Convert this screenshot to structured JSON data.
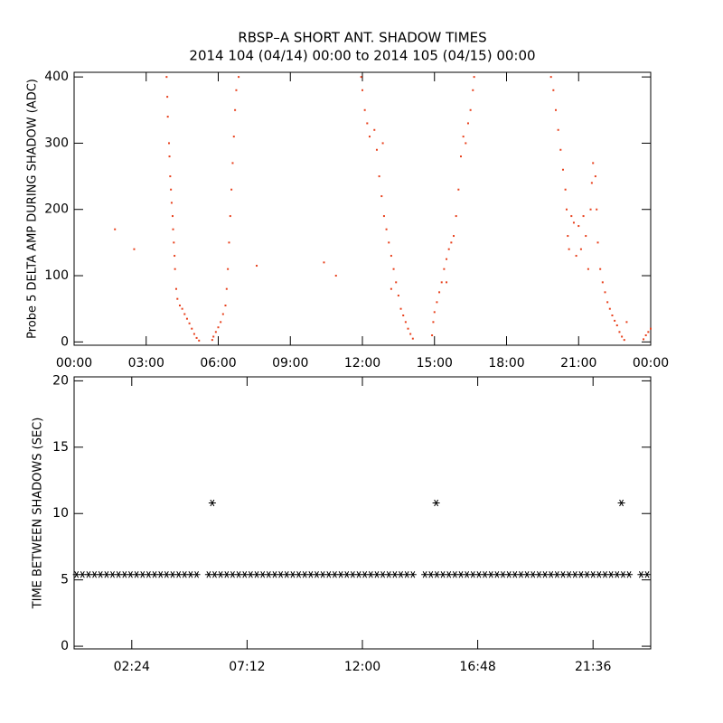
{
  "chart_data": [
    {
      "type": "scatter",
      "title": "RBSP–A SHORT ANT. SHADOW TIMES",
      "subtitle": "2014 104 (04/14) 00:00 to 2014 105 (04/15) 00:00",
      "y_label": "Probe 5 DELTA AMP DURING SHADOW (ADC)",
      "color": "#e8401c",
      "xlim": [
        0,
        24
      ],
      "ylim": [
        -5,
        407
      ],
      "xticks": [
        {
          "value": 0,
          "label": "00:00"
        },
        {
          "value": 3,
          "label": "03:00"
        },
        {
          "value": 6,
          "label": "06:00"
        },
        {
          "value": 9,
          "label": "09:00"
        },
        {
          "value": 12,
          "label": "12:00"
        },
        {
          "value": 15,
          "label": "15:00"
        },
        {
          "value": 18,
          "label": "18:00"
        },
        {
          "value": 21,
          "label": "21:00"
        },
        {
          "value": 24,
          "label": "00:00"
        }
      ],
      "yticks": [
        0,
        100,
        200,
        300,
        400
      ],
      "x": [
        3.85,
        3.88,
        3.9,
        3.95,
        3.97,
        4.0,
        4.03,
        4.06,
        4.1,
        4.12,
        4.15,
        4.18,
        4.2,
        4.25,
        4.3,
        4.4,
        4.5,
        4.6,
        4.7,
        4.8,
        4.9,
        5.0,
        5.1,
        5.2,
        5.75,
        5.8,
        5.9,
        6.0,
        6.1,
        6.2,
        6.3,
        6.35,
        6.4,
        6.45,
        6.5,
        6.55,
        6.6,
        6.65,
        6.7,
        6.75,
        6.85,
        1.7,
        2.5,
        7.6,
        10.4,
        10.9,
        11.95,
        12.0,
        12.1,
        12.2,
        12.3,
        12.5,
        12.6,
        12.7,
        12.8,
        12.9,
        13.0,
        13.1,
        13.2,
        13.3,
        13.4,
        13.5,
        13.6,
        13.7,
        13.8,
        13.9,
        14.0,
        14.1,
        13.2,
        12.85,
        14.9,
        14.95,
        15.0,
        15.1,
        15.2,
        15.3,
        15.4,
        15.5,
        15.6,
        15.7,
        15.8,
        15.9,
        16.0,
        16.1,
        16.2,
        16.3,
        16.4,
        16.5,
        16.6,
        16.65,
        15.5,
        19.85,
        19.95,
        20.05,
        20.15,
        20.25,
        20.35,
        20.45,
        20.5,
        20.55,
        20.6,
        20.7,
        20.8,
        20.9,
        21.0,
        21.1,
        21.2,
        21.3,
        21.4,
        21.5,
        21.55,
        21.6,
        21.7,
        21.75,
        21.8,
        21.9,
        22.0,
        22.1,
        22.2,
        22.3,
        22.4,
        22.5,
        22.6,
        22.7,
        22.8,
        22.9,
        23.0,
        23.7,
        23.8,
        23.9,
        24.0
      ],
      "values": [
        400,
        370,
        340,
        300,
        280,
        250,
        230,
        210,
        190,
        170,
        150,
        130,
        110,
        80,
        65,
        55,
        50,
        42,
        35,
        28,
        20,
        12,
        6,
        2,
        3,
        8,
        15,
        22,
        30,
        42,
        55,
        80,
        110,
        150,
        190,
        230,
        270,
        310,
        350,
        380,
        400,
        170,
        140,
        115,
        120,
        100,
        400,
        380,
        350,
        330,
        310,
        320,
        290,
        250,
        220,
        190,
        170,
        150,
        130,
        110,
        90,
        70,
        50,
        40,
        30,
        20,
        12,
        5,
        80,
        300,
        10,
        30,
        45,
        60,
        75,
        90,
        110,
        125,
        140,
        150,
        160,
        190,
        230,
        280,
        310,
        300,
        330,
        350,
        380,
        400,
        90,
        400,
        380,
        350,
        320,
        290,
        260,
        230,
        200,
        160,
        140,
        190,
        180,
        130,
        175,
        140,
        190,
        160,
        110,
        200,
        240,
        270,
        250,
        200,
        150,
        110,
        90,
        75,
        60,
        50,
        40,
        32,
        25,
        15,
        8,
        3,
        30,
        4,
        10,
        15,
        20
      ]
    },
    {
      "type": "asterisk",
      "y_label": "TIME BETWEEN SHADOWS (SEC)",
      "color": "#000000",
      "xlim": [
        0,
        24
      ],
      "ylim": [
        -0.2,
        20.3
      ],
      "xticks": [
        {
          "value": 2.4,
          "label": "02:24"
        },
        {
          "value": 7.2,
          "label": "07:12"
        },
        {
          "value": 12,
          "label": "12:00"
        },
        {
          "value": 16.8,
          "label": "16:48"
        },
        {
          "value": 21.6,
          "label": "21:36"
        }
      ],
      "yticks": [
        0,
        5,
        10,
        15,
        20
      ],
      "x": [
        0.1,
        0.35,
        0.6,
        0.85,
        1.1,
        1.35,
        1.6,
        1.85,
        2.1,
        2.35,
        2.6,
        2.85,
        3.1,
        3.35,
        3.6,
        3.85,
        4.1,
        4.35,
        4.6,
        4.85,
        5.1,
        5.6,
        5.85,
        6.1,
        6.35,
        6.6,
        6.85,
        7.1,
        7.35,
        7.6,
        7.85,
        8.1,
        8.35,
        8.6,
        8.85,
        9.1,
        9.35,
        9.6,
        9.85,
        10.1,
        10.35,
        10.6,
        10.85,
        11.1,
        11.35,
        11.6,
        11.85,
        12.1,
        12.35,
        12.6,
        12.85,
        13.1,
        13.35,
        13.6,
        13.85,
        14.1,
        14.6,
        14.85,
        15.1,
        15.35,
        15.6,
        15.85,
        16.1,
        16.35,
        16.6,
        16.85,
        17.1,
        17.35,
        17.6,
        17.85,
        18.1,
        18.35,
        18.6,
        18.85,
        19.1,
        19.35,
        19.6,
        19.85,
        20.1,
        20.35,
        20.6,
        20.85,
        21.1,
        21.35,
        21.6,
        21.85,
        22.1,
        22.35,
        22.6,
        22.85,
        23.1,
        23.6,
        23.85,
        5.75,
        15.07,
        22.78
      ],
      "values": [
        5.4,
        5.4,
        5.4,
        5.4,
        5.4,
        5.4,
        5.4,
        5.4,
        5.4,
        5.4,
        5.4,
        5.4,
        5.4,
        5.4,
        5.4,
        5.4,
        5.4,
        5.4,
        5.4,
        5.4,
        5.4,
        5.4,
        5.4,
        5.4,
        5.4,
        5.4,
        5.4,
        5.4,
        5.4,
        5.4,
        5.4,
        5.4,
        5.4,
        5.4,
        5.4,
        5.4,
        5.4,
        5.4,
        5.4,
        5.4,
        5.4,
        5.4,
        5.4,
        5.4,
        5.4,
        5.4,
        5.4,
        5.4,
        5.4,
        5.4,
        5.4,
        5.4,
        5.4,
        5.4,
        5.4,
        5.4,
        5.4,
        5.4,
        5.4,
        5.4,
        5.4,
        5.4,
        5.4,
        5.4,
        5.4,
        5.4,
        5.4,
        5.4,
        5.4,
        5.4,
        5.4,
        5.4,
        5.4,
        5.4,
        5.4,
        5.4,
        5.4,
        5.4,
        5.4,
        5.4,
        5.4,
        5.4,
        5.4,
        5.4,
        5.4,
        5.4,
        5.4,
        5.4,
        5.4,
        5.4,
        5.4,
        5.4,
        5.4,
        10.8,
        10.8,
        10.8
      ]
    }
  ]
}
